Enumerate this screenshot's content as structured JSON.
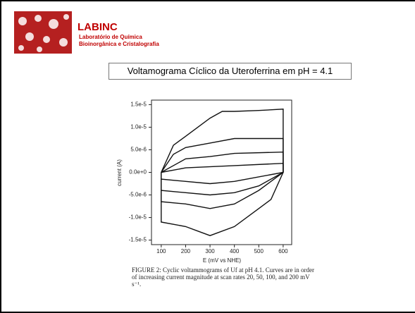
{
  "header": {
    "title": "LABINC",
    "line1": "Laboratório de Química",
    "line2": "Bioinorgânica e Cristalografia"
  },
  "slide_title": "Voltamograma Cíclico da Uteroferrina em pH = 4.1",
  "caption": "FIGURE 2:  Cyclic voltammograms of Uf at pH 4.1. Curves are in order of increasing current magnitude at scan rates 20, 50, 100, and 200 mV s⁻¹.",
  "chart_data": {
    "type": "line",
    "x_label": "E (mV vs NHE)",
    "y_label": "current (A)",
    "xlim": [
      60,
      635
    ],
    "ylim": [
      -1.6e-05,
      1.6e-05
    ],
    "xticks": [
      100,
      200,
      300,
      400,
      500,
      600
    ],
    "yticks": [
      {
        "value": 1.5e-05,
        "label": "1.5e-5"
      },
      {
        "value": 1e-05,
        "label": "1.0e-5"
      },
      {
        "value": 5e-06,
        "label": "5.0e-6"
      },
      {
        "value": 0,
        "label": "0.0e+0"
      },
      {
        "value": -5e-06,
        "label": "-5.0e-6"
      },
      {
        "value": -1e-05,
        "label": "-1.0e-5"
      },
      {
        "value": -1.5e-05,
        "label": "-1.5e-5"
      }
    ],
    "series": [
      {
        "color": "#111111",
        "x": [
          100,
          200,
          400,
          600,
          600,
          400,
          300,
          200,
          100,
          100
        ],
        "values": [
          0,
          1e-06,
          1.5e-06,
          2e-06,
          0,
          -2e-06,
          -2.5e-06,
          -2e-06,
          -1.5e-06,
          0
        ]
      },
      {
        "color": "#111111",
        "x": [
          100,
          200,
          300,
          400,
          600,
          600,
          500,
          400,
          300,
          200,
          100,
          100
        ],
        "values": [
          0,
          3e-06,
          3.5e-06,
          4.2e-06,
          4.5e-06,
          0,
          -3e-06,
          -4.5e-06,
          -5e-06,
          -4.5e-06,
          -4e-06,
          0
        ]
      },
      {
        "color": "#111111",
        "x": [
          100,
          150,
          200,
          300,
          400,
          600,
          600,
          500,
          400,
          300,
          200,
          100,
          100
        ],
        "values": [
          0,
          4e-06,
          5.5e-06,
          6.5e-06,
          7.5e-06,
          7.5e-06,
          0,
          -4e-06,
          -7e-06,
          -8e-06,
          -7e-06,
          -6.5e-06,
          0
        ]
      },
      {
        "color": "#111111",
        "x": [
          100,
          150,
          200,
          250,
          300,
          350,
          400,
          500,
          600,
          600,
          550,
          500,
          400,
          300,
          250,
          200,
          100,
          100
        ],
        "values": [
          0,
          6e-06,
          8e-06,
          1e-05,
          1.2e-05,
          1.35e-05,
          1.35e-05,
          1.37e-05,
          1.4e-05,
          0,
          -6e-06,
          -8e-06,
          -1.2e-05,
          -1.4e-05,
          -1.3e-05,
          -1.2e-05,
          -1.1e-05,
          0
        ]
      }
    ]
  }
}
